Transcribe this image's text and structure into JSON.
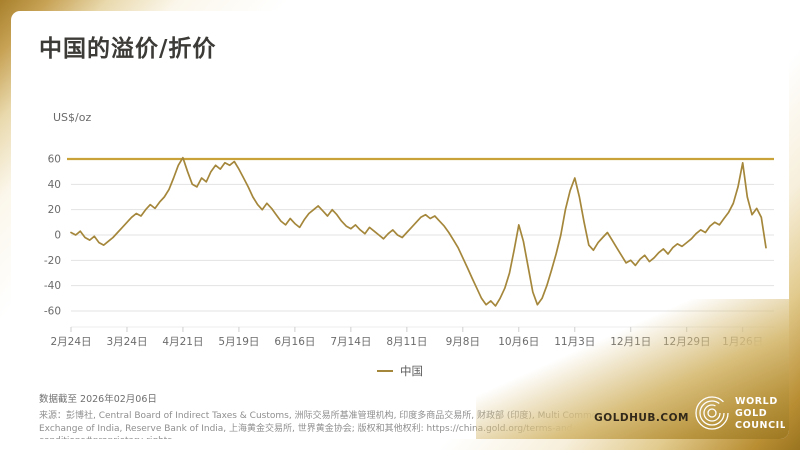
{
  "title": "中国的溢价/折价",
  "chart_data": {
    "type": "line",
    "title": "中国的溢价/折价",
    "xlabel": "",
    "ylabel": "US$/oz",
    "ylim": [
      -60,
      60
    ],
    "y_ticks": [
      60,
      40,
      20,
      0,
      -20,
      -40,
      -60
    ],
    "x_ticks": [
      "2月24日",
      "3月24日",
      "4月21日",
      "5月19日",
      "6月16日",
      "7月14日",
      "8月11日",
      "9月8日",
      "10月6日",
      "11月3日",
      "12月1日",
      "12月29日",
      "1月26日"
    ],
    "x_tick_indices": [
      0,
      12,
      24,
      36,
      48,
      60,
      72,
      84,
      96,
      108,
      120,
      132,
      144
    ],
    "grid": "horizontal",
    "legend_position": "bottom-center",
    "reference_line": 60,
    "reference_color": "#c9a23a",
    "gridline_color": "#e3e3e3",
    "series": [
      {
        "name": "中国",
        "color": "#a5873b",
        "values": [
          2,
          0,
          3,
          -2,
          -4,
          -1,
          -6,
          -8,
          -5,
          -2,
          2,
          6,
          10,
          14,
          17,
          15,
          20,
          24,
          21,
          26,
          30,
          36,
          45,
          55,
          61,
          50,
          40,
          38,
          45,
          42,
          50,
          55,
          52,
          57,
          55,
          58,
          52,
          45,
          38,
          30,
          24,
          20,
          25,
          21,
          16,
          11,
          8,
          13,
          9,
          6,
          12,
          17,
          20,
          23,
          19,
          15,
          20,
          16,
          11,
          7,
          5,
          8,
          4,
          1,
          6,
          3,
          0,
          -3,
          1,
          4,
          0,
          -2,
          2,
          6,
          10,
          14,
          16,
          13,
          15,
          11,
          7,
          2,
          -4,
          -10,
          -18,
          -26,
          -34,
          -42,
          -50,
          -55,
          -52,
          -56,
          -50,
          -42,
          -30,
          -12,
          8,
          -5,
          -25,
          -45,
          -55,
          -50,
          -40,
          -28,
          -15,
          0,
          20,
          35,
          45,
          30,
          10,
          -8,
          -12,
          -6,
          -2,
          2,
          -4,
          -10,
          -16,
          -22,
          -20,
          -24,
          -19,
          -16,
          -21,
          -18,
          -14,
          -11,
          -15,
          -10,
          -7,
          -9,
          -6,
          -3,
          1,
          4,
          2,
          7,
          10,
          8,
          13,
          18,
          25,
          38,
          57,
          30,
          16,
          21,
          14,
          -10
        ]
      }
    ]
  },
  "footer": {
    "data_note": "数据截至 2026年02月06日",
    "source": "来源：彭博社, Central Board of Indirect Taxes & Customs, 洲际交易所基准管理机构, 印度多商品交易所, 财政部 (印度), Multi Commodity Exchange of India, Reserve Bank of India, 上海黄金交易所, 世界黄金协会; 版权和其他权利: ",
    "source_url": "https://china.gold.org/terms-and-conditions#proprietary-rights",
    "goldhub": "GOLDHUB.COM",
    "logo_lines": [
      "WORLD",
      "GOLD",
      "COUNCIL"
    ]
  }
}
